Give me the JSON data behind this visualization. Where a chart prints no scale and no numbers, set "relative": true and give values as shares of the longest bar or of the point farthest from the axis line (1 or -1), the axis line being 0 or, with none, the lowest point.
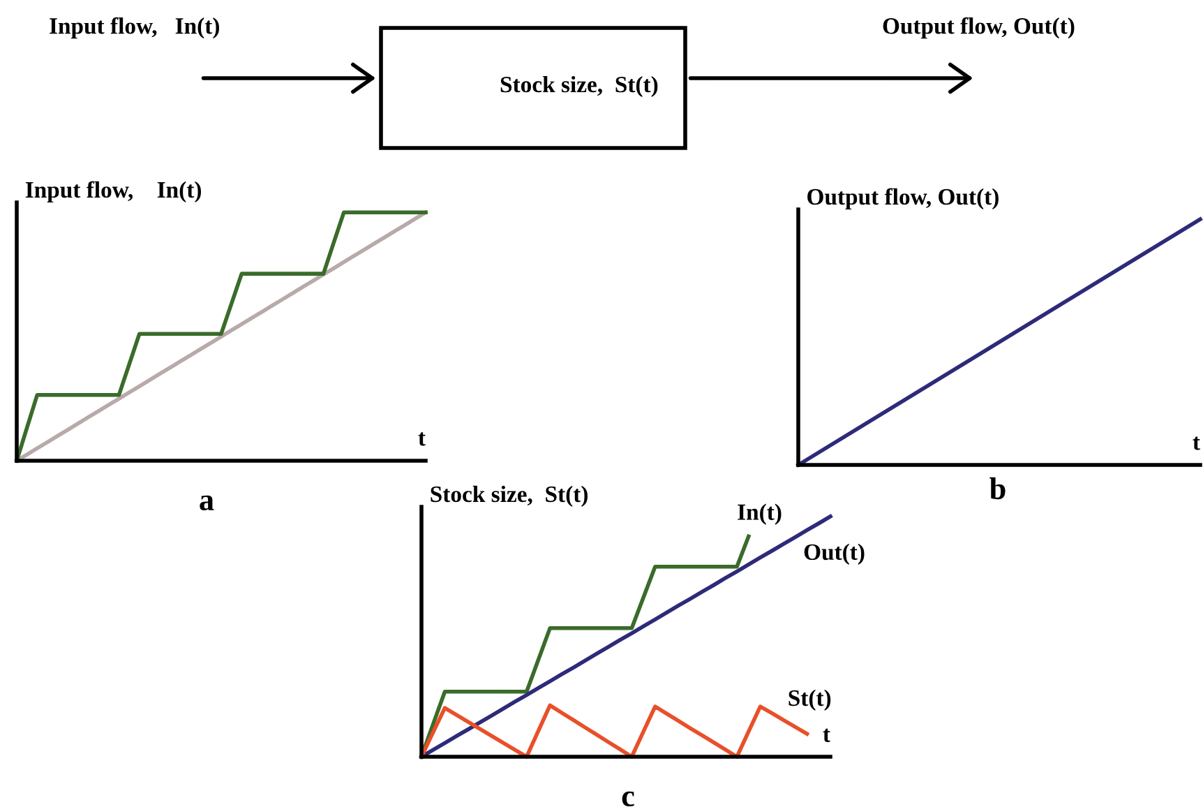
{
  "chart_data": [
    {
      "type": "other",
      "annotations": [
        "Input flow,   In(t)",
        "Stock size,  St(t)",
        "Output flow, Out(t)"
      ]
    },
    {
      "type": "line",
      "relative": true,
      "ylabel": "Input flow,    In(t)",
      "xlabel": "t",
      "annotations": [
        "a"
      ],
      "categories": [
        null,
        null,
        null,
        null,
        null,
        null,
        null,
        null,
        null,
        null,
        null,
        null,
        null,
        null,
        null,
        null,
        null,
        null,
        null,
        null,
        null,
        null,
        null,
        null,
        null,
        null,
        null,
        null,
        null,
        null,
        null,
        null,
        null,
        null,
        null,
        null,
        null,
        null,
        null,
        null,
        null
      ],
      "series": [
        {
          "color": "#b8aaa8",
          "values": [
            0,
            0.025,
            0.05,
            0.075,
            0.1,
            0.125,
            0.15,
            0.175,
            0.2,
            0.225,
            0.25,
            0.275,
            0.3,
            0.325,
            0.35,
            0.375,
            0.4,
            0.425,
            0.45,
            0.475,
            0.5,
            0.525,
            0.55,
            0.575,
            0.6,
            0.625,
            0.65,
            0.675,
            0.7,
            0.725,
            0.75,
            0.775,
            0.8,
            0.825,
            0.85,
            0.875,
            0.9,
            0.925,
            0.95,
            0.975,
            1
          ]
        },
        {
          "color": "#3a6b2a",
          "values": [
            0,
            0.133,
            0.265,
            0.265,
            0.265,
            0.265,
            0.265,
            0.265,
            0.265,
            0.265,
            0.265,
            0.388,
            0.511,
            0.511,
            0.511,
            0.511,
            0.511,
            0.511,
            0.511,
            0.511,
            0.511,
            0.632,
            0.753,
            0.753,
            0.753,
            0.753,
            0.753,
            0.753,
            0.753,
            0.753,
            0.753,
            0.877,
            1,
            1,
            1,
            1,
            1,
            1,
            1,
            1,
            1
          ]
        }
      ]
    },
    {
      "type": "line",
      "relative": true,
      "ylabel": "Output flow, Out(t)",
      "xlabel": "t",
      "annotations": [
        "b"
      ],
      "categories": [
        null,
        null
      ],
      "series": [
        {
          "color": "#2e2a7a",
          "values": [
            0,
            1
          ]
        }
      ]
    },
    {
      "type": "line",
      "relative": true,
      "ylabel": "Stock size,  St(t)",
      "xlabel": "t",
      "annotations": [
        "c"
      ],
      "categories": [
        null,
        null,
        null,
        null,
        null,
        null,
        null,
        null,
        null,
        null,
        null,
        null,
        null,
        null,
        null,
        null,
        null,
        null,
        null,
        null,
        null,
        null,
        null,
        null,
        null,
        null,
        null,
        null,
        null,
        null,
        null,
        null,
        null,
        null,
        null,
        null
      ],
      "series": [
        {
          "name": "In(t)",
          "color": "#3a6b2a",
          "values": [
            0,
            0.136,
            0.271,
            0.271,
            0.271,
            0.271,
            0.271,
            0.271,
            0.271,
            0.271,
            0.403,
            0.535,
            0.535,
            0.535,
            0.535,
            0.535,
            0.535,
            0.535,
            0.535,
            0.663,
            0.791,
            0.791,
            0.791,
            0.791,
            0.791,
            0.791,
            0.791,
            0.791,
            0.917,
            null,
            null,
            null,
            null,
            null,
            null,
            null
          ]
        },
        {
          "name": "Out(t)",
          "color": "#2e2a7a",
          "values": [
            0,
            0.029,
            0.057,
            0.086,
            0.114,
            0.143,
            0.171,
            0.2,
            0.229,
            0.257,
            0.286,
            0.314,
            0.343,
            0.371,
            0.4,
            0.429,
            0.457,
            0.486,
            0.514,
            0.543,
            0.571,
            0.6,
            0.629,
            0.657,
            0.686,
            0.714,
            0.743,
            0.771,
            0.8,
            0.829,
            0.857,
            0.886,
            0.914,
            0.943,
            0.971,
            1
          ]
        },
        {
          "name": "St(t)",
          "color": "#e8502a",
          "values": [
            0,
            0.102,
            0.203,
            0.174,
            0.145,
            0.116,
            0.087,
            0.058,
            0.029,
            0,
            0.107,
            0.214,
            0.183,
            0.153,
            0.122,
            0.092,
            0.061,
            0.031,
            0,
            0.105,
            0.209,
            0.179,
            0.149,
            0.119,
            0.09,
            0.06,
            0.03,
            0,
            0.105,
            0.209,
            0.181,
            0.152,
            0.124,
            0.095,
            null,
            null
          ]
        }
      ]
    }
  ]
}
